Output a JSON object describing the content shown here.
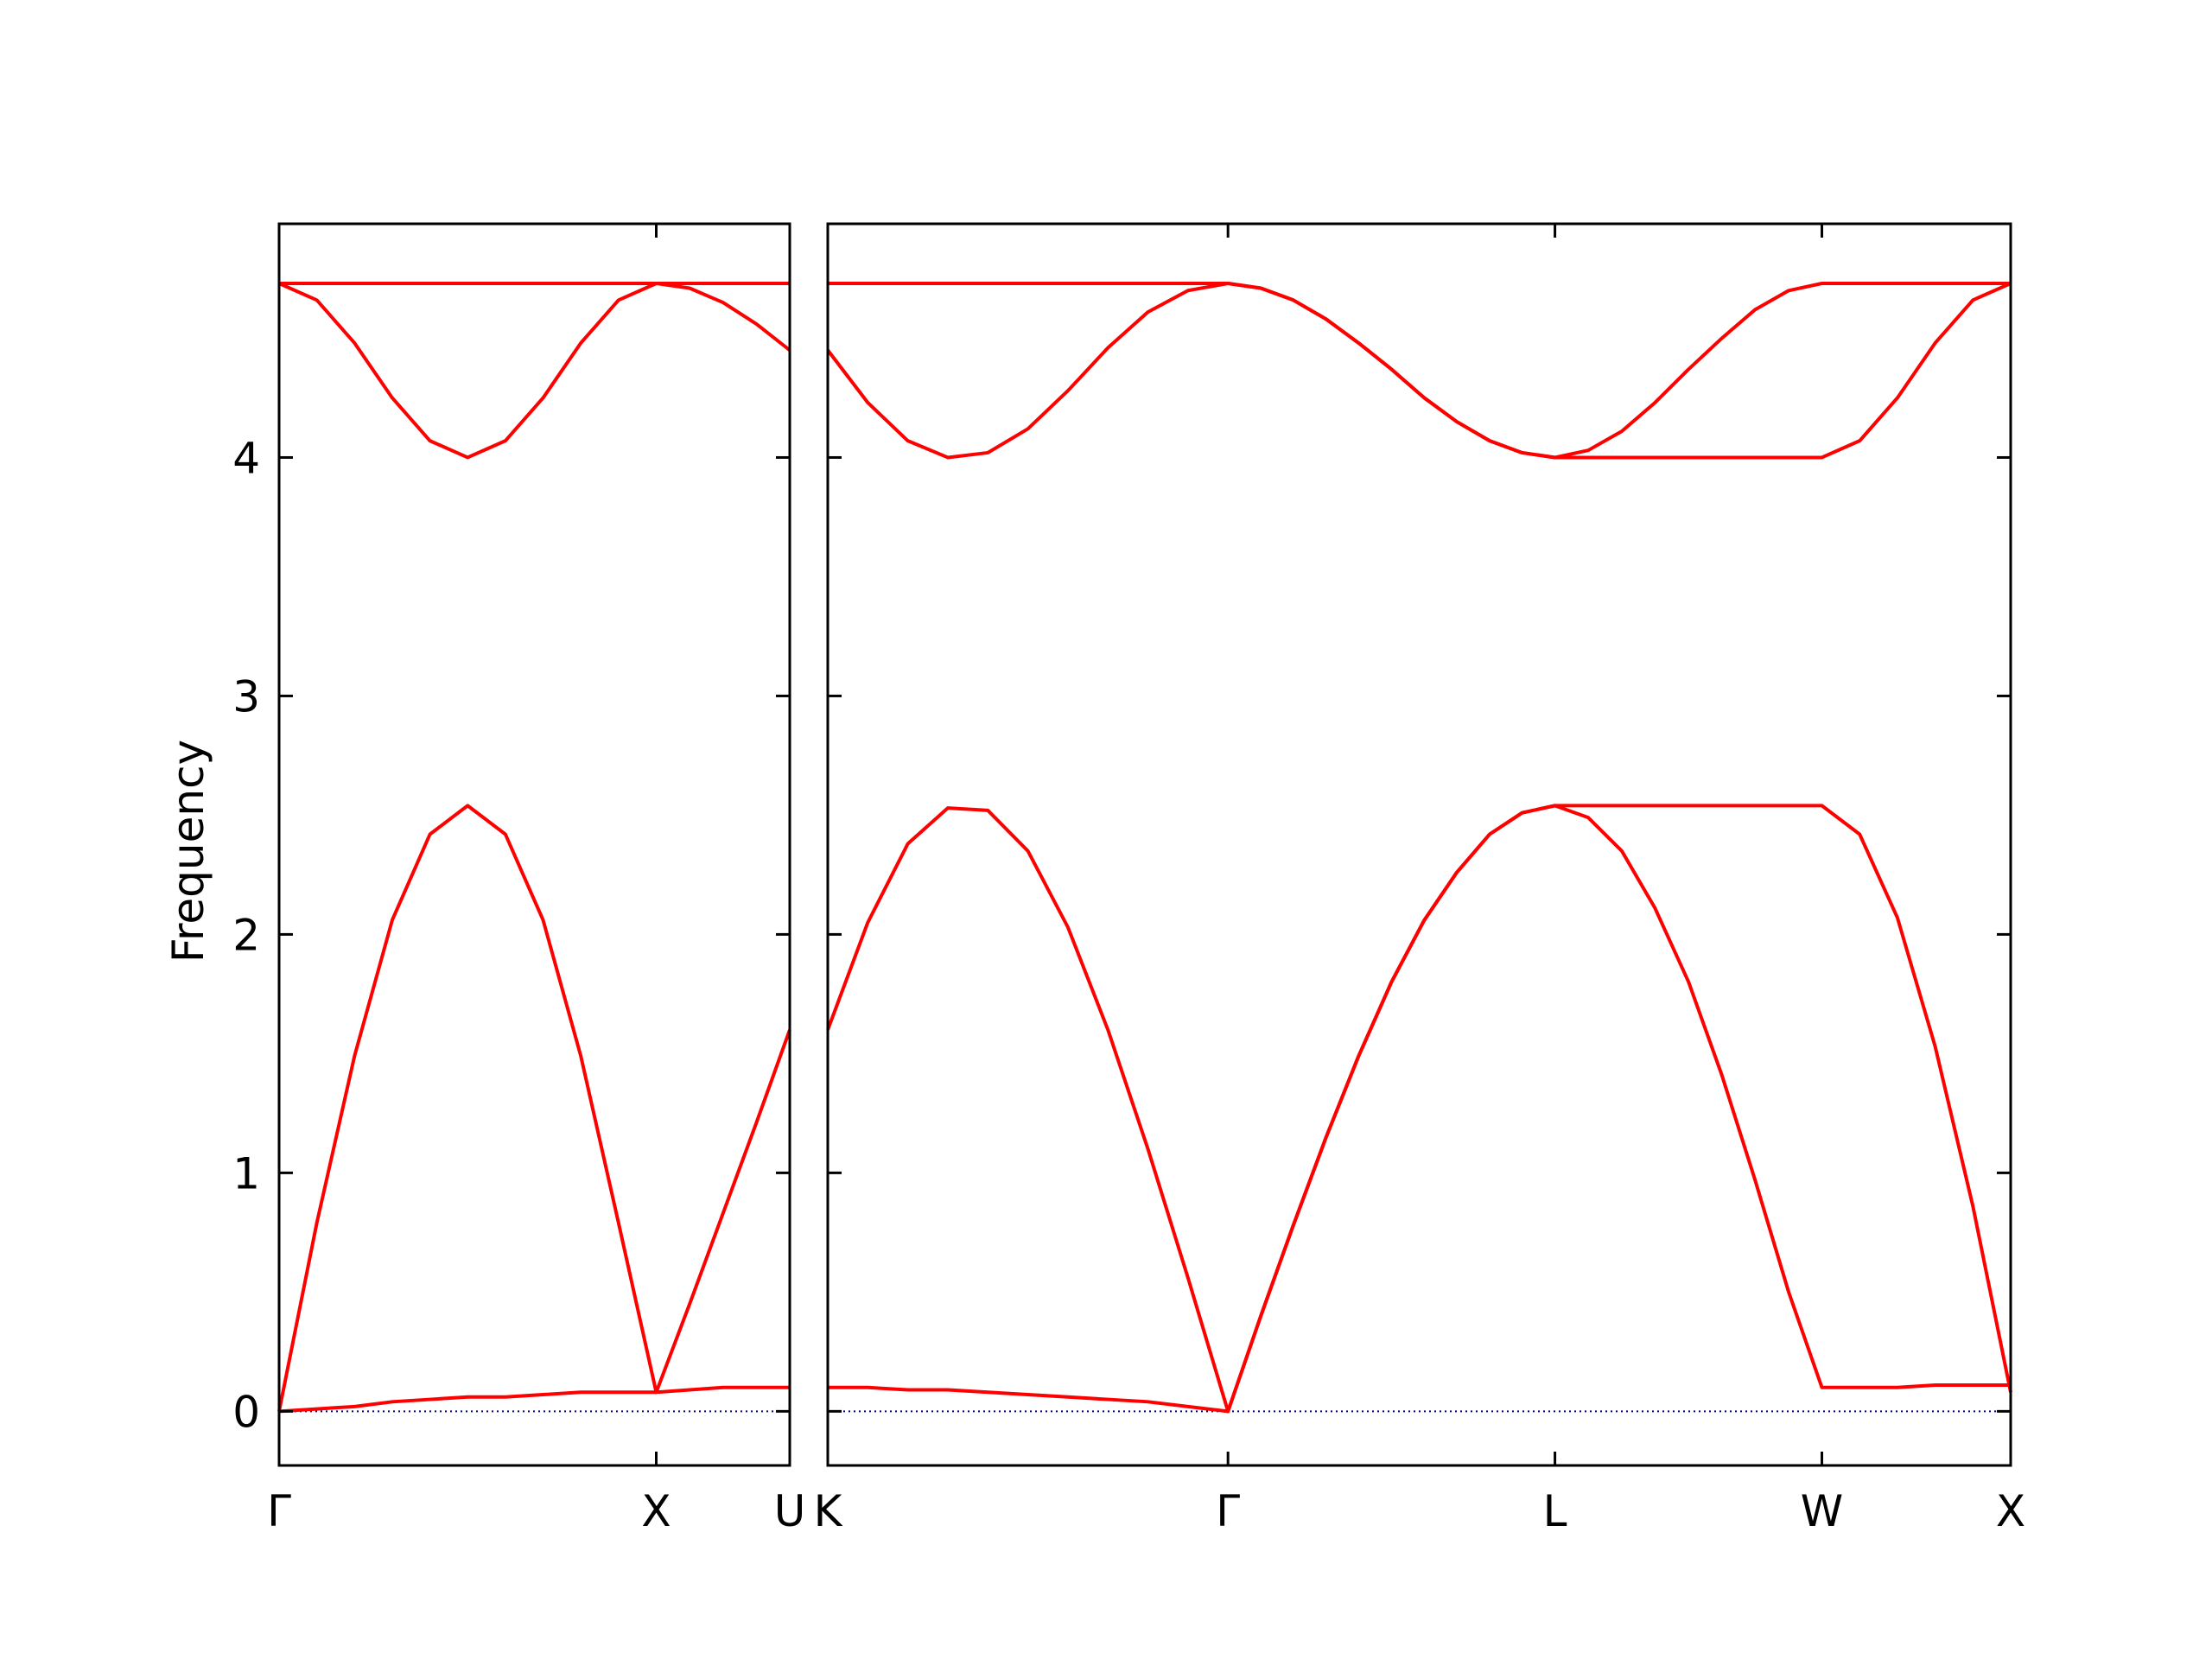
{
  "chart_data": [
    {
      "type": "line",
      "ylabel": "Frequency",
      "xlim": [
        0,
        1.354
      ],
      "xticks": [
        {
          "value": 0,
          "label": "Γ"
        },
        {
          "value": 1,
          "label": "X"
        },
        {
          "value": 1.354,
          "label": "U"
        }
      ],
      "ylim": [
        -0.227,
        4.98
      ],
      "yticks": [
        0,
        1,
        2,
        3,
        4
      ],
      "show_ytick_labels": true,
      "reference_line": {
        "y": 0,
        "color": "#00008b"
      },
      "x": [
        0,
        0.1,
        0.2,
        0.3,
        0.4,
        0.5,
        0.6,
        0.7,
        0.8,
        0.9,
        1.0,
        1.0885,
        1.177,
        1.2655,
        1.354
      ],
      "series": [
        {
          "color": "#ff0000",
          "values": [
            0,
            0.01,
            0.02,
            0.04,
            0.05,
            0.06,
            0.06,
            0.07,
            0.08,
            0.08,
            0.08,
            0.09,
            0.1,
            0.1,
            0.1
          ]
        },
        {
          "color": "#ff0000",
          "values": [
            0,
            0.79,
            1.49,
            2.06,
            2.42,
            2.54,
            2.42,
            2.06,
            1.49,
            0.79,
            0.08,
            0.45,
            0.83,
            1.21,
            1.6
          ]
        },
        {
          "color": "#ff0000",
          "values": [
            4.73,
            4.66,
            4.48,
            4.25,
            4.07,
            4.0,
            4.07,
            4.25,
            4.48,
            4.66,
            4.73,
            4.71,
            4.65,
            4.56,
            4.45
          ]
        },
        {
          "color": "#ff0000",
          "values": [
            4.73,
            4.73,
            4.73,
            4.73,
            4.73,
            4.73,
            4.73,
            4.73,
            4.73,
            4.73,
            4.73,
            4.73,
            4.73,
            4.73,
            4.73
          ]
        }
      ]
    },
    {
      "type": "line",
      "xlim": [
        1.354,
        4.487
      ],
      "xticks": [
        {
          "value": 1.354,
          "label": "K"
        },
        {
          "value": 2.414,
          "label": "Γ"
        },
        {
          "value": 3.28,
          "label": "L"
        },
        {
          "value": 3.987,
          "label": "W"
        },
        {
          "value": 4.487,
          "label": "X"
        }
      ],
      "ylim": [
        -0.227,
        4.98
      ],
      "yticks": [
        0,
        1,
        2,
        3,
        4
      ],
      "show_ytick_labels": false,
      "reference_line": {
        "y": 0,
        "color": "#00008b"
      },
      "x": [
        1.354,
        1.46,
        1.566,
        1.672,
        1.778,
        1.884,
        1.99,
        2.096,
        2.202,
        2.308,
        2.414,
        2.501,
        2.587,
        2.674,
        2.76,
        2.847,
        2.934,
        3.02,
        3.107,
        3.193,
        3.28,
        3.368,
        3.457,
        3.545,
        3.634,
        3.722,
        3.81,
        3.899,
        3.987,
        4.087,
        4.187,
        4.287,
        4.387,
        4.487
      ],
      "series": [
        {
          "color": "#ff0000",
          "values": [
            0.1,
            0.1,
            0.09,
            0.09,
            0.08,
            0.07,
            0.06,
            0.05,
            0.04,
            0.02,
            0,
            0.4,
            0.78,
            1.15,
            1.49,
            1.8,
            2.06,
            2.26,
            2.42,
            2.51,
            2.54,
            2.49,
            2.35,
            2.11,
            1.8,
            1.41,
            0.97,
            0.5,
            0.1,
            0.1,
            0.1,
            0.11,
            0.11,
            0.11
          ]
        },
        {
          "color": "#ff0000",
          "values": [
            1.6,
            2.05,
            2.38,
            2.53,
            2.52,
            2.35,
            2.03,
            1.6,
            1.1,
            0.56,
            0,
            0.4,
            0.78,
            1.15,
            1.49,
            1.8,
            2.06,
            2.26,
            2.42,
            2.51,
            2.54,
            2.54,
            2.54,
            2.54,
            2.54,
            2.54,
            2.54,
            2.54,
            2.54,
            2.42,
            2.07,
            1.53,
            0.86,
            0.08
          ]
        },
        {
          "color": "#ff0000",
          "values": [
            4.45,
            4.23,
            4.07,
            4.0,
            4.02,
            4.12,
            4.28,
            4.46,
            4.61,
            4.7,
            4.73,
            4.71,
            4.66,
            4.58,
            4.48,
            4.37,
            4.25,
            4.15,
            4.07,
            4.02,
            4.0,
            4.0,
            4.0,
            4.0,
            4.0,
            4.0,
            4.0,
            4.0,
            4.0,
            4.07,
            4.25,
            4.48,
            4.66,
            4.73
          ]
        },
        {
          "color": "#ff0000",
          "values": [
            4.73,
            4.73,
            4.73,
            4.73,
            4.73,
            4.73,
            4.73,
            4.73,
            4.73,
            4.73,
            4.73,
            4.71,
            4.66,
            4.58,
            4.48,
            4.37,
            4.25,
            4.15,
            4.07,
            4.02,
            4.0,
            4.03,
            4.11,
            4.23,
            4.37,
            4.5,
            4.62,
            4.7,
            4.73,
            4.73,
            4.73,
            4.73,
            4.73,
            4.73
          ]
        }
      ]
    }
  ]
}
